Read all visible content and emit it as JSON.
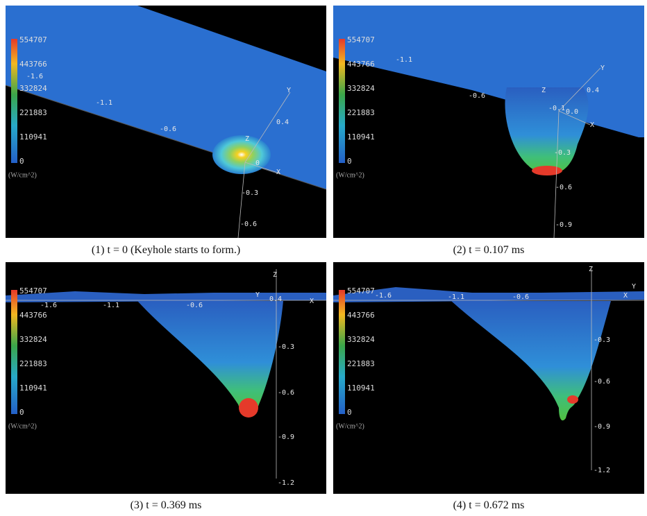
{
  "colorbar": {
    "ticks": [
      554707,
      443766,
      332824,
      221883,
      110941,
      0
    ],
    "unit": "(W/cm^2)"
  },
  "panels": [
    {
      "caption": "(1) t = 0 (Keyhole starts to form.)",
      "labels": [
        "-1.1",
        "-0.6",
        "-1.6",
        "0.4",
        "Y",
        "Z",
        "X",
        "-0.3",
        "-0.6",
        "0"
      ]
    },
    {
      "caption": "(2) t = 0.107 ms",
      "labels": [
        "-1.1",
        "-0.6",
        "0.4",
        "Y",
        "Z",
        "X",
        "-0.1",
        "0.0",
        "-0.3",
        "-0.6",
        "-0.9"
      ]
    },
    {
      "caption": "(3) t = 0.369 ms",
      "labels": [
        "-1.6",
        "-1.1",
        "-0.6",
        "Y",
        "Z",
        "X",
        "0.4",
        "-0.3",
        "-0.6",
        "-0.9",
        "-1.2"
      ]
    },
    {
      "caption": "(4) t = 0.672 ms",
      "labels": [
        "-1.6",
        "-1.1",
        "-0.6",
        "Y",
        "Z",
        "X",
        "-0.3",
        "-0.6",
        "-0.9",
        "-1.2"
      ]
    }
  ]
}
